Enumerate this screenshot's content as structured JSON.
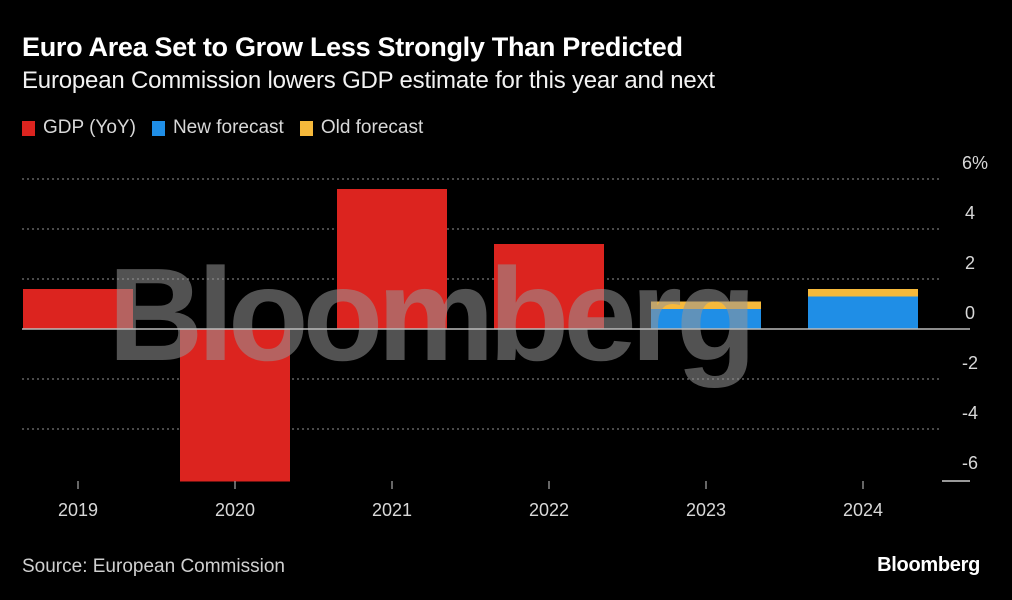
{
  "header": {
    "title": "Euro Area Set to Grow Less Strongly Than Predicted",
    "subtitle": "European Commission lowers GDP estimate for this year and next"
  },
  "legend": [
    {
      "label": "GDP (YoY)",
      "color": "#dc241f"
    },
    {
      "label": "New forecast",
      "color": "#1f8ee6"
    },
    {
      "label": "Old forecast",
      "color": "#f6b93b"
    }
  ],
  "footer": {
    "source": "Source: European Commission",
    "brand": "Bloomberg"
  },
  "watermark": "Bloomberg",
  "chart_data": {
    "type": "bar",
    "title": "Euro Area Set to Grow Less Strongly Than Predicted",
    "subtitle": "European Commission lowers GDP estimate for this year and next",
    "xlabel": "",
    "ylabel": "",
    "categories": [
      "2019",
      "2020",
      "2021",
      "2022",
      "2023",
      "2024"
    ],
    "series": [
      {
        "name": "GDP (YoY)",
        "color": "#dc241f",
        "values": [
          1.6,
          -6.1,
          5.6,
          3.4,
          null,
          null
        ]
      },
      {
        "name": "New forecast",
        "color": "#1f8ee6",
        "values": [
          null,
          null,
          null,
          null,
          0.8,
          1.3
        ]
      },
      {
        "name": "Old forecast",
        "color": "#f6b93b",
        "values": [
          null,
          null,
          null,
          null,
          1.1,
          1.6
        ]
      }
    ],
    "ylim": [
      -6,
      6
    ],
    "yticks": [
      6,
      4,
      2,
      0,
      -2,
      -4,
      -6
    ],
    "ytick_labels": [
      "6%",
      "4",
      "2",
      "0",
      "-2",
      "-4",
      "-6"
    ],
    "grid": true,
    "legend_position": "top-left",
    "yaxis_position": "right"
  }
}
